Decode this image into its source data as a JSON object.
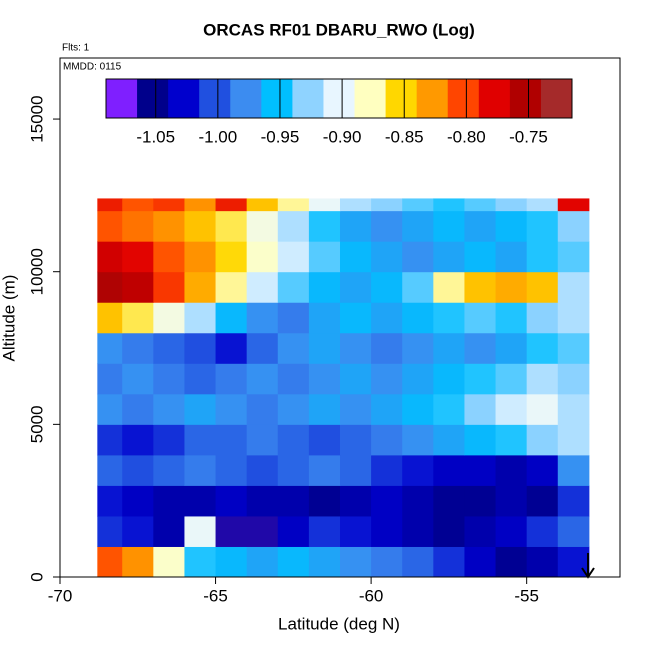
{
  "chart_data": {
    "type": "heatmap",
    "title": "ORCAS RF01 DBARU_RWO (Log)",
    "annotations": [
      "Flts: 1",
      "MMDD: 0115"
    ],
    "xlabel": "Latitude (deg N)",
    "ylabel": "Altitude (m)",
    "xlim": [
      -70,
      -52
    ],
    "xticks": [
      -70,
      -65,
      -60,
      -55
    ],
    "ylim": [
      0,
      17000
    ],
    "yticks": [
      0,
      5000,
      10000,
      15000
    ],
    "xbins": [
      -68.8,
      -68,
      -67,
      -66,
      -65,
      -64,
      -63,
      -62,
      -61,
      -60,
      -59,
      -58,
      -57,
      -56,
      -55,
      -54,
      -53
    ],
    "ybins": [
      0,
      1000,
      2000,
      3000,
      4000,
      5000,
      6000,
      7000,
      8000,
      9000,
      10000,
      11000,
      12000,
      12400
    ],
    "z": [
      [
        -0.8,
        -0.82,
        -0.88,
        -0.95,
        -0.96,
        -0.97,
        -0.96,
        -0.97,
        -0.98,
        -0.99,
        -1.0,
        -1.02,
        -1.04,
        -1.06,
        -1.05,
        -1.03
      ],
      [
        -1.02,
        -1.03,
        -1.05,
        -0.9,
        -1.07,
        -1.07,
        -1.04,
        -1.02,
        -1.03,
        -1.04,
        -1.05,
        -1.06,
        -1.05,
        -1.04,
        -1.02,
        -1.0
      ],
      [
        -1.03,
        -1.04,
        -1.05,
        -1.05,
        -1.04,
        -1.05,
        -1.05,
        -1.06,
        -1.05,
        -1.04,
        -1.05,
        -1.06,
        -1.06,
        -1.05,
        -1.06,
        -1.02
      ],
      [
        -1.0,
        -1.01,
        -1.0,
        -0.99,
        -1.0,
        -1.01,
        -1.0,
        -0.99,
        -1.0,
        -1.02,
        -1.03,
        -1.04,
        -1.04,
        -1.05,
        -1.04,
        -0.98
      ],
      [
        -1.02,
        -1.03,
        -1.02,
        -1.0,
        -1.0,
        -0.99,
        -1.0,
        -1.01,
        -1.0,
        -0.99,
        -0.98,
        -0.97,
        -0.96,
        -0.95,
        -0.93,
        -0.92
      ],
      [
        -0.98,
        -0.99,
        -0.98,
        -0.97,
        -0.98,
        -0.99,
        -0.98,
        -0.97,
        -0.98,
        -0.97,
        -0.96,
        -0.95,
        -0.93,
        -0.91,
        -0.9,
        -0.92
      ],
      [
        -0.99,
        -0.98,
        -0.99,
        -1.0,
        -0.99,
        -0.98,
        -0.99,
        -0.98,
        -0.97,
        -0.98,
        -0.97,
        -0.96,
        -0.95,
        -0.94,
        -0.92,
        -0.93
      ],
      [
        -0.98,
        -0.99,
        -1.0,
        -1.01,
        -1.03,
        -1.0,
        -0.98,
        -0.97,
        -0.98,
        -0.99,
        -0.98,
        -0.97,
        -0.98,
        -0.97,
        -0.95,
        -0.94
      ],
      [
        -0.84,
        -0.86,
        -0.89,
        -0.92,
        -0.96,
        -0.98,
        -0.99,
        -0.97,
        -0.96,
        -0.97,
        -0.96,
        -0.95,
        -0.94,
        -0.95,
        -0.93,
        -0.92
      ],
      [
        -0.74,
        -0.75,
        -0.79,
        -0.83,
        -0.87,
        -0.91,
        -0.94,
        -0.96,
        -0.97,
        -0.96,
        -0.94,
        -0.87,
        -0.84,
        -0.83,
        -0.84,
        -0.92
      ],
      [
        -0.76,
        -0.77,
        -0.8,
        -0.82,
        -0.85,
        -0.88,
        -0.91,
        -0.94,
        -0.96,
        -0.97,
        -0.98,
        -0.97,
        -0.96,
        -0.97,
        -0.95,
        -0.94
      ],
      [
        -0.8,
        -0.81,
        -0.82,
        -0.84,
        -0.86,
        -0.89,
        -0.92,
        -0.95,
        -0.97,
        -0.98,
        -0.97,
        -0.96,
        -0.97,
        -0.96,
        -0.95,
        -0.93
      ],
      [
        -0.78,
        -0.8,
        -0.79,
        -0.82,
        -0.78,
        -0.84,
        -0.87,
        -0.9,
        -0.92,
        -0.93,
        -0.94,
        -0.95,
        -0.94,
        -0.93,
        -0.92,
        -0.77
      ]
    ],
    "colorbar": {
      "range": [
        -1.09,
        -0.715
      ],
      "ticks": [
        -1.05,
        {
          "value": -1.0,
          "label": "-1.00"
        },
        -0.95,
        {
          "value": -0.9,
          "label": "-0.90"
        },
        -0.85,
        {
          "value": -0.8,
          "label": "-0.80"
        },
        -0.75
      ],
      "colors": [
        "#7f1fff",
        "#00008b",
        "#0000cd",
        "#2050e0",
        "#3c8cf0",
        "#00bfff",
        "#8fd3ff",
        "#e8f6ff",
        "#ffffc0",
        "#ffd700",
        "#ff9900",
        "#ff4500",
        "#e00000",
        "#b00000",
        "#a52a2a"
      ]
    }
  }
}
